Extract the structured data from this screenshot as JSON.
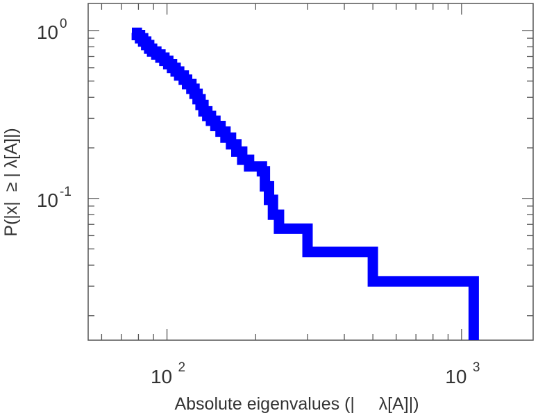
{
  "chart_data": {
    "type": "line",
    "step": true,
    "title": "",
    "xlabel": "Absolute eigenvalues (|     λ[A]|)",
    "ylabel": "P(|x|  ≥ | λ[A]|)",
    "xscale": "log",
    "yscale": "log",
    "xlim": [
      54,
      1750
    ],
    "ylim": [
      0.0143,
      1.45
    ],
    "grid": false,
    "legend": "none",
    "line_color": "#0000ff",
    "x_ticks": [
      {
        "value": 100,
        "base": "10",
        "exp": "2"
      },
      {
        "value": 1000,
        "base": "10",
        "exp": "3"
      }
    ],
    "y_ticks": [
      {
        "value": 1,
        "base": "10",
        "exp": "0"
      },
      {
        "value": 0.1,
        "base": "10",
        "exp": "-1"
      }
    ],
    "series": [
      {
        "x": [
          76,
          79,
          81,
          83,
          85,
          87,
          89,
          92,
          95,
          98,
          101,
          104,
          107,
          110,
          114,
          117,
          121,
          124,
          127,
          130,
          133,
          137,
          141,
          146,
          152,
          158,
          165,
          172,
          180,
          190,
          210,
          215,
          222,
          229,
          240,
          300,
          500,
          1100
        ],
        "y": [
          0.97,
          0.94,
          0.9,
          0.86,
          0.82,
          0.78,
          0.75,
          0.72,
          0.69,
          0.66,
          0.63,
          0.6,
          0.57,
          0.54,
          0.51,
          0.48,
          0.45,
          0.42,
          0.39,
          0.36,
          0.33,
          0.31,
          0.29,
          0.27,
          0.25,
          0.23,
          0.21,
          0.19,
          0.17,
          0.155,
          0.145,
          0.118,
          0.098,
          0.08,
          0.066,
          0.048,
          0.032,
          0.0166
        ]
      }
    ]
  }
}
